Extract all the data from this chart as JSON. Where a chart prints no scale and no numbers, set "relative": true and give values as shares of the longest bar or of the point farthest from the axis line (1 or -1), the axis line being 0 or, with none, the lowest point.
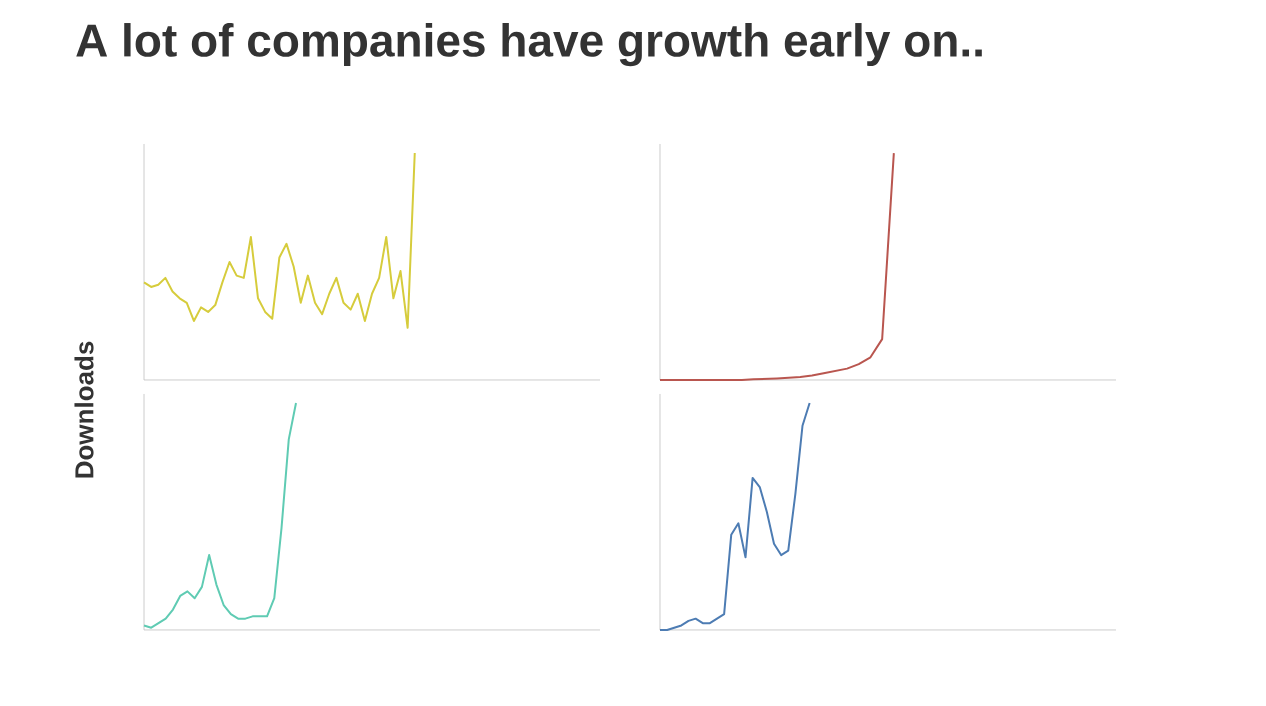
{
  "chart_data": [
    {
      "type": "other",
      "title": "A lot of companies have growth early on..",
      "annotations": [
        "Downloads"
      ]
    },
    {
      "type": "line",
      "relative": true,
      "categories": [
        null,
        null,
        null,
        null,
        null,
        null,
        null,
        null,
        null,
        null,
        null,
        null,
        null,
        null,
        null,
        null,
        null,
        null,
        null,
        null,
        null,
        null,
        null,
        null,
        null,
        null,
        null,
        null,
        null,
        null,
        null,
        null,
        null,
        null,
        null,
        null,
        null,
        null,
        null,
        null,
        null,
        null,
        null,
        null,
        null,
        null,
        null,
        null,
        null,
        null,
        null,
        null,
        null,
        null,
        null,
        null,
        null,
        null,
        null,
        null,
        null,
        null,
        null,
        null,
        null
      ],
      "series": [
        {
          "color": "#d6cc3c",
          "values": [
            0.43,
            0.41,
            0.42,
            0.45,
            0.39,
            0.36,
            0.34,
            0.26,
            0.32,
            0.3,
            0.33,
            0.43,
            0.52,
            0.46,
            0.45,
            0.63,
            0.36,
            0.3,
            0.27,
            0.54,
            0.6,
            0.5,
            0.34,
            0.46,
            0.34,
            0.29,
            0.38,
            0.45,
            0.34,
            0.31,
            0.38,
            0.26,
            0.38,
            0.45,
            0.63,
            0.36,
            0.48,
            0.23,
            1.0,
            null,
            null,
            null,
            null,
            null,
            null,
            null,
            null,
            null,
            null,
            null,
            null,
            null,
            null,
            null,
            null,
            null,
            null,
            null,
            null,
            null,
            null,
            null,
            null,
            null,
            null
          ]
        }
      ]
    },
    {
      "type": "line",
      "relative": true,
      "categories": [
        null,
        null,
        null,
        null,
        null,
        null,
        null,
        null,
        null,
        null,
        null,
        null,
        null,
        null,
        null,
        null,
        null,
        null,
        null,
        null,
        null,
        null,
        null,
        null,
        null,
        null,
        null,
        null,
        null,
        null,
        null,
        null,
        null,
        null,
        null,
        null,
        null,
        null,
        null,
        null
      ],
      "series": [
        {
          "color": "#b9564f",
          "values": [
            0,
            0,
            0,
            0,
            0,
            0,
            0,
            0,
            0.003,
            0.005,
            0.007,
            0.01,
            0.013,
            0.02,
            0.03,
            0.04,
            0.05,
            0.07,
            0.1,
            0.18,
            1.0,
            null,
            null,
            null,
            null,
            null,
            null,
            null,
            null,
            null,
            null,
            null,
            null,
            null,
            null,
            null,
            null,
            null,
            null,
            null
          ]
        }
      ]
    },
    {
      "type": "line",
      "relative": true,
      "categories": [
        null,
        null,
        null,
        null,
        null,
        null,
        null,
        null,
        null,
        null,
        null,
        null,
        null,
        null,
        null,
        null,
        null,
        null,
        null,
        null,
        null,
        null,
        null,
        null,
        null,
        null,
        null,
        null,
        null,
        null,
        null,
        null,
        null,
        null,
        null,
        null,
        null,
        null,
        null,
        null,
        null,
        null,
        null,
        null,
        null,
        null,
        null,
        null,
        null,
        null,
        null,
        null,
        null,
        null,
        null,
        null,
        null,
        null,
        null,
        null,
        null,
        null,
        null,
        null
      ],
      "series": [
        {
          "color": "#5fcbb3",
          "values": [
            0.02,
            0.01,
            0.03,
            0.05,
            0.09,
            0.15,
            0.17,
            0.14,
            0.19,
            0.33,
            0.2,
            0.11,
            0.07,
            0.05,
            0.05,
            0.06,
            0.06,
            0.06,
            0.14,
            0.45,
            0.84,
            1.0,
            null,
            null,
            null,
            null,
            null,
            null,
            null,
            null,
            null,
            null,
            null,
            null,
            null,
            null,
            null,
            null,
            null,
            null,
            null,
            null,
            null,
            null,
            null,
            null,
            null,
            null,
            null,
            null,
            null,
            null,
            null,
            null,
            null,
            null,
            null,
            null,
            null,
            null,
            null,
            null,
            null,
            null
          ]
        }
      ]
    },
    {
      "type": "line",
      "relative": true,
      "categories": [
        null,
        null,
        null,
        null,
        null,
        null,
        null,
        null,
        null,
        null,
        null,
        null,
        null,
        null,
        null,
        null,
        null,
        null,
        null,
        null,
        null,
        null,
        null,
        null,
        null,
        null,
        null,
        null,
        null,
        null,
        null,
        null,
        null,
        null,
        null,
        null,
        null,
        null,
        null,
        null,
        null,
        null,
        null,
        null,
        null,
        null,
        null,
        null,
        null,
        null,
        null,
        null,
        null,
        null,
        null,
        null,
        null,
        null,
        null,
        null,
        null,
        null,
        null,
        null,
        null
      ],
      "series": [
        {
          "color": "#4d7cb3",
          "values": [
            0,
            0,
            0.01,
            0.02,
            0.04,
            0.05,
            0.03,
            0.03,
            0.05,
            0.07,
            0.42,
            0.47,
            0.32,
            0.67,
            0.63,
            0.52,
            0.38,
            0.33,
            0.35,
            0.6,
            0.9,
            1.0,
            null,
            null,
            null,
            null,
            null,
            null,
            null,
            null,
            null,
            null,
            null,
            null,
            null,
            null,
            null,
            null,
            null,
            null,
            null,
            null,
            null,
            null,
            null,
            null,
            null,
            null,
            null,
            null,
            null,
            null,
            null,
            null,
            null,
            null,
            null,
            null,
            null,
            null,
            null,
            null,
            null,
            null,
            null
          ]
        }
      ]
    }
  ]
}
